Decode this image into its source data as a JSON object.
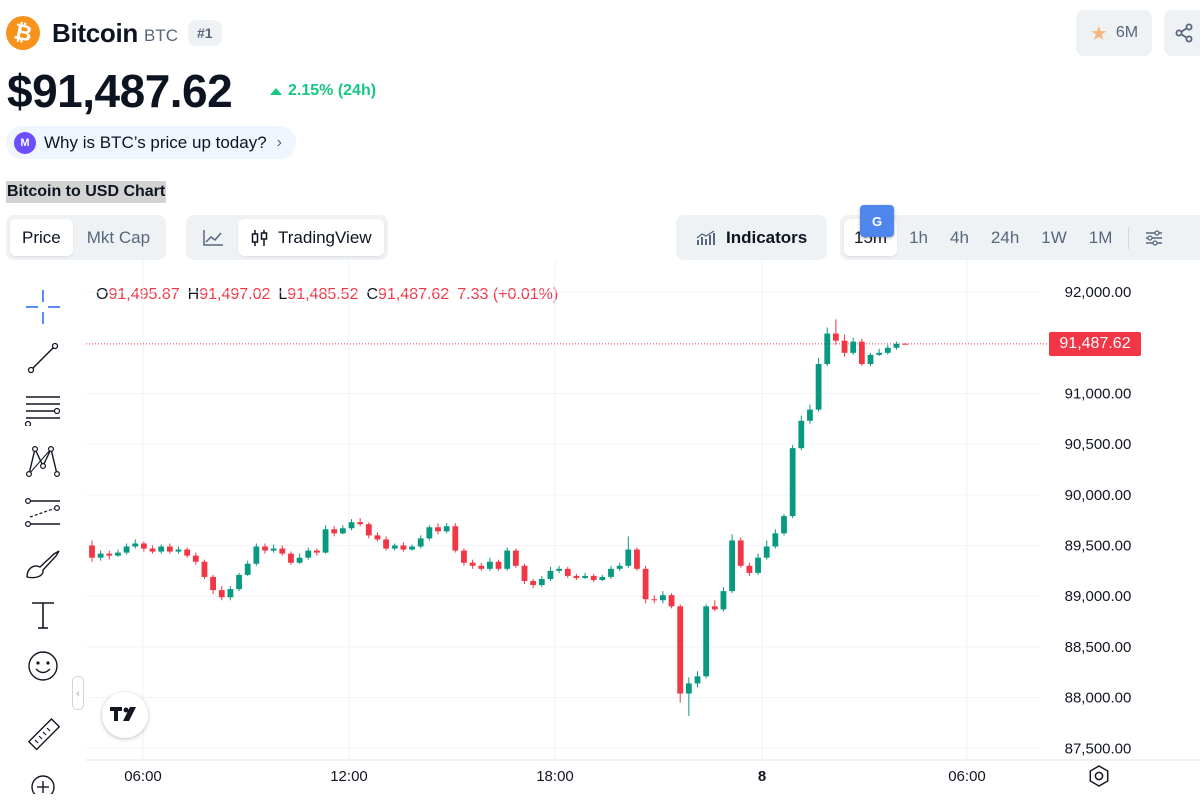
{
  "coin": {
    "name": "Bitcoin",
    "symbol": "BTC",
    "rank": "#1",
    "logo_glyph": "₿"
  },
  "watchlist": {
    "count": "6M",
    "icon": "star-icon"
  },
  "share": {
    "icon": "share-icon"
  },
  "price": {
    "value": "$91,487.62",
    "change": "2.15% (24h)",
    "direction": "up"
  },
  "why_pill": {
    "label": "Why is BTC’s price up today?",
    "icon": "ai-spark-icon"
  },
  "chart_section_title": "Bitcoin to USD Chart",
  "tabs": {
    "metric": [
      {
        "label": "Price",
        "active": true
      },
      {
        "label": "Mkt Cap",
        "active": false
      }
    ],
    "view": [
      {
        "label": "",
        "icon": "line-chart-icon",
        "active": false
      },
      {
        "label": "TradingView",
        "icon": "candles-icon",
        "active": true
      }
    ],
    "indicators": "Indicators",
    "intervals": [
      {
        "label": "15m",
        "active": true
      },
      {
        "label": "1h"
      },
      {
        "label": "4h"
      },
      {
        "label": "24h"
      },
      {
        "label": "1W"
      },
      {
        "label": "1M"
      }
    ]
  },
  "ohlc": {
    "o_label": "O",
    "o": "91,495.87",
    "h_label": "H",
    "h": "91,497.02",
    "l_label": "L",
    "l": "91,485.52",
    "c_label": "C",
    "c": "91,487.62",
    "change": "7.33 (+0.01%)"
  },
  "last_price_tag": "91,487.62",
  "colors": {
    "up": "#089981",
    "down": "#f23645",
    "accent_green": "#16c784",
    "bitcoin": "#f7931a"
  },
  "drawing_tools": [
    "crosshair-icon",
    "trendline-icon",
    "fib-retracement-icon",
    "pattern-icon",
    "prediction-icon",
    "brush-icon",
    "text-icon",
    "emoji-icon",
    "ruler-icon",
    "zoom-in-icon"
  ],
  "chart_data": {
    "type": "candlestick",
    "title": "",
    "x_ticks": [
      "06:00",
      "12:00",
      "18:00",
      "8",
      "06:00"
    ],
    "y_ticks": [
      "92,000.00",
      "91,000.00",
      "90,500.00",
      "90,000.00",
      "89,500.00",
      "89,000.00",
      "88,500.00",
      "88,000.00",
      "87,500.00"
    ],
    "ylim": [
      87430,
      92150
    ],
    "candle_interval": "15m",
    "candles": [
      [
        89500,
        89380,
        89550,
        89340
      ],
      [
        89380,
        89420,
        89450,
        89350
      ],
      [
        89420,
        89400,
        89450,
        89360
      ],
      [
        89400,
        89430,
        89460,
        89390
      ],
      [
        89430,
        89490,
        89520,
        89410
      ],
      [
        89490,
        89520,
        89560,
        89470
      ],
      [
        89520,
        89470,
        89540,
        89440
      ],
      [
        89470,
        89440,
        89500,
        89420
      ],
      [
        89440,
        89490,
        89510,
        89420
      ],
      [
        89490,
        89440,
        89520,
        89420
      ],
      [
        89440,
        89460,
        89490,
        89420
      ],
      [
        89460,
        89400,
        89480,
        89380
      ],
      [
        89400,
        89340,
        89430,
        89310
      ],
      [
        89340,
        89190,
        89360,
        89170
      ],
      [
        89190,
        89060,
        89210,
        89020
      ],
      [
        89060,
        88990,
        89100,
        88960
      ],
      [
        88990,
        89070,
        89100,
        88960
      ],
      [
        89070,
        89210,
        89230,
        89050
      ],
      [
        89210,
        89320,
        89350,
        89200
      ],
      [
        89320,
        89490,
        89520,
        89300
      ],
      [
        89490,
        89450,
        89520,
        89420
      ],
      [
        89450,
        89470,
        89510,
        89430
      ],
      [
        89470,
        89420,
        89500,
        89400
      ],
      [
        89420,
        89330,
        89440,
        89310
      ],
      [
        89330,
        89380,
        89420,
        89320
      ],
      [
        89380,
        89450,
        89480,
        89360
      ],
      [
        89450,
        89430,
        89470,
        89400
      ],
      [
        89430,
        89660,
        89700,
        89420
      ],
      [
        89660,
        89620,
        89690,
        89590
      ],
      [
        89620,
        89670,
        89700,
        89610
      ],
      [
        89670,
        89730,
        89760,
        89650
      ],
      [
        89730,
        89710,
        89770,
        89690
      ],
      [
        89710,
        89600,
        89730,
        89570
      ],
      [
        89600,
        89560,
        89630,
        89540
      ],
      [
        89560,
        89470,
        89590,
        89450
      ],
      [
        89470,
        89500,
        89520,
        89450
      ],
      [
        89500,
        89460,
        89530,
        89440
      ],
      [
        89460,
        89490,
        89510,
        89450
      ],
      [
        89490,
        89570,
        89600,
        89470
      ],
      [
        89570,
        89680,
        89700,
        89550
      ],
      [
        89680,
        89640,
        89720,
        89610
      ],
      [
        89640,
        89690,
        89720,
        89620
      ],
      [
        89690,
        89450,
        89720,
        89430
      ],
      [
        89450,
        89330,
        89470,
        89300
      ],
      [
        89330,
        89300,
        89360,
        89270
      ],
      [
        89300,
        89270,
        89330,
        89250
      ],
      [
        89270,
        89340,
        89380,
        89250
      ],
      [
        89340,
        89270,
        89360,
        89250
      ],
      [
        89270,
        89450,
        89480,
        89250
      ],
      [
        89450,
        89300,
        89470,
        89280
      ],
      [
        89300,
        89150,
        89320,
        89120
      ],
      [
        89150,
        89110,
        89170,
        89080
      ],
      [
        89110,
        89170,
        89200,
        89090
      ],
      [
        89170,
        89250,
        89290,
        89150
      ],
      [
        89250,
        89270,
        89300,
        89230
      ],
      [
        89270,
        89200,
        89290,
        89180
      ],
      [
        89200,
        89180,
        89220,
        89160
      ],
      [
        89180,
        89200,
        89230,
        89170
      ],
      [
        89200,
        89160,
        89220,
        89140
      ],
      [
        89160,
        89190,
        89210,
        89150
      ],
      [
        89190,
        89270,
        89300,
        89170
      ],
      [
        89270,
        89300,
        89330,
        89250
      ],
      [
        89300,
        89460,
        89590,
        89280
      ],
      [
        89460,
        89270,
        89480,
        89250
      ],
      [
        89270,
        88970,
        89300,
        88930
      ],
      [
        88970,
        88960,
        89010,
        88930
      ],
      [
        88960,
        89010,
        89050,
        88930
      ],
      [
        89010,
        88900,
        89030,
        88880
      ],
      [
        88900,
        88040,
        88920,
        87950
      ],
      [
        88040,
        88140,
        88200,
        87820
      ],
      [
        88140,
        88210,
        88260,
        88100
      ],
      [
        88210,
        88900,
        88920,
        88190
      ],
      [
        88900,
        88870,
        88960,
        88850
      ],
      [
        88870,
        89050,
        89090,
        88850
      ],
      [
        89050,
        89550,
        89610,
        89030
      ],
      [
        89550,
        89300,
        89580,
        89280
      ],
      [
        89300,
        89230,
        89330,
        89200
      ],
      [
        89230,
        89380,
        89420,
        89210
      ],
      [
        89380,
        89490,
        89550,
        89360
      ],
      [
        89490,
        89620,
        89660,
        89470
      ],
      [
        89620,
        89790,
        89810,
        89600
      ],
      [
        89790,
        90460,
        90490,
        89770
      ],
      [
        90460,
        90730,
        90780,
        90440
      ],
      [
        90730,
        90840,
        90890,
        90700
      ],
      [
        90840,
        91290,
        91350,
        90820
      ],
      [
        91290,
        91590,
        91650,
        91270
      ],
      [
        91590,
        91520,
        91730,
        91480
      ],
      [
        91520,
        91400,
        91580,
        91360
      ],
      [
        91400,
        91510,
        91550,
        91380
      ],
      [
        91510,
        91290,
        91540,
        91270
      ],
      [
        91290,
        91380,
        91400,
        91270
      ],
      [
        91380,
        91400,
        91440,
        91370
      ],
      [
        91400,
        91450,
        91480,
        91380
      ],
      [
        91450,
        91490,
        91510,
        91430
      ],
      [
        91490,
        91488,
        91497,
        91485
      ]
    ]
  }
}
